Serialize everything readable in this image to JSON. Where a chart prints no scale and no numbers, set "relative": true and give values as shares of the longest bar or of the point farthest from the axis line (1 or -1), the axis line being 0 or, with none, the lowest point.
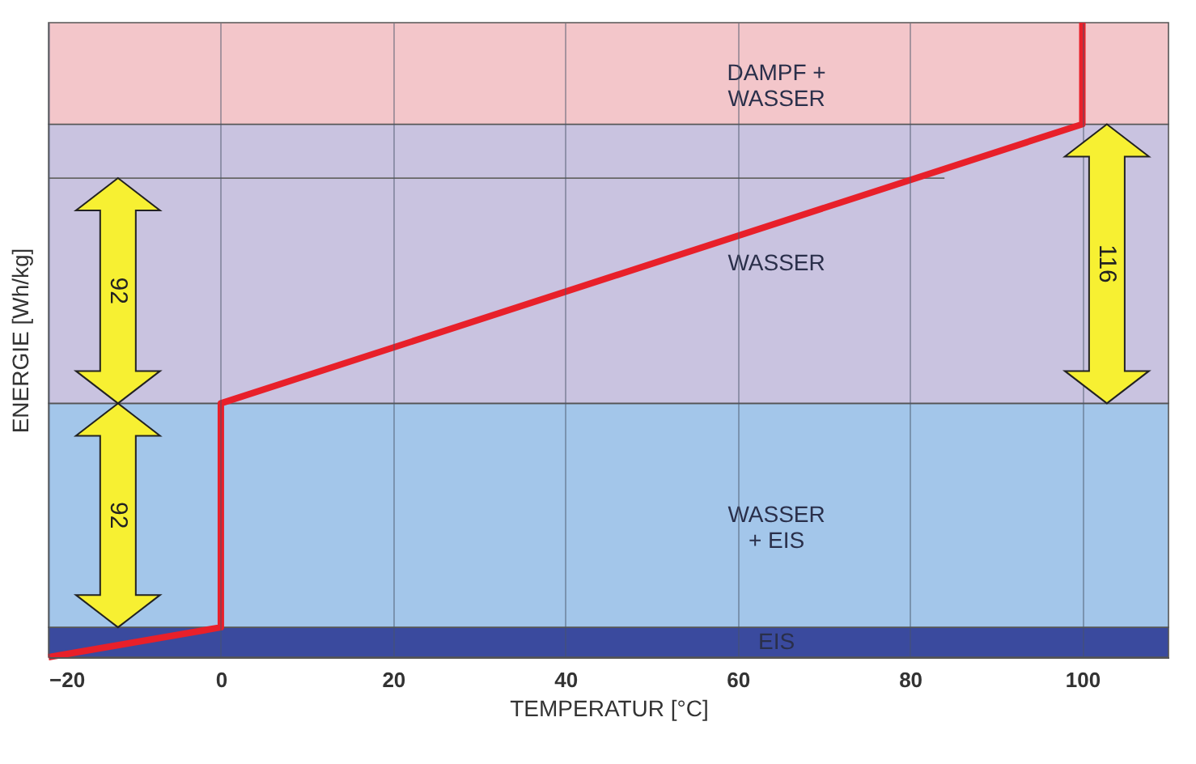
{
  "chart_data": {
    "type": "line",
    "relative": true,
    "xlabel": "TEMPERATUR [°C]",
    "ylabel": "ENERGIE [Wh/kg]",
    "xlim": [
      -20,
      110
    ],
    "xticks": [
      -20,
      0,
      20,
      40,
      60,
      80,
      100
    ],
    "grid": "x",
    "x": [
      -20,
      0,
      0,
      100,
      100
    ],
    "series": [
      {
        "color": "#e8202a",
        "values": [
          0,
          0.047,
          0.4,
          0.84,
          1
        ]
      }
    ],
    "bands": [
      {
        "axis": "y",
        "from": 0,
        "to": 0.047,
        "label": "EIS",
        "color": "#3a4a9e"
      },
      {
        "axis": "y",
        "from": 0.047,
        "to": 0.4,
        "label": "WASSER\n+ EIS",
        "color": "#a3c6ea"
      },
      {
        "axis": "y",
        "from": 0.4,
        "to": 0.84,
        "label": "WASSER",
        "color": "#c9c3e0"
      },
      {
        "axis": "y",
        "from": 0.84,
        "to": 1,
        "label": "DAMPF +\nWASSER",
        "color": "#f3c6ca"
      }
    ],
    "ref_lines": [
      {
        "axis": "y",
        "value": 0.755,
        "color": "#666666"
      }
    ],
    "annotations": [
      "92",
      "92",
      "116"
    ]
  }
}
